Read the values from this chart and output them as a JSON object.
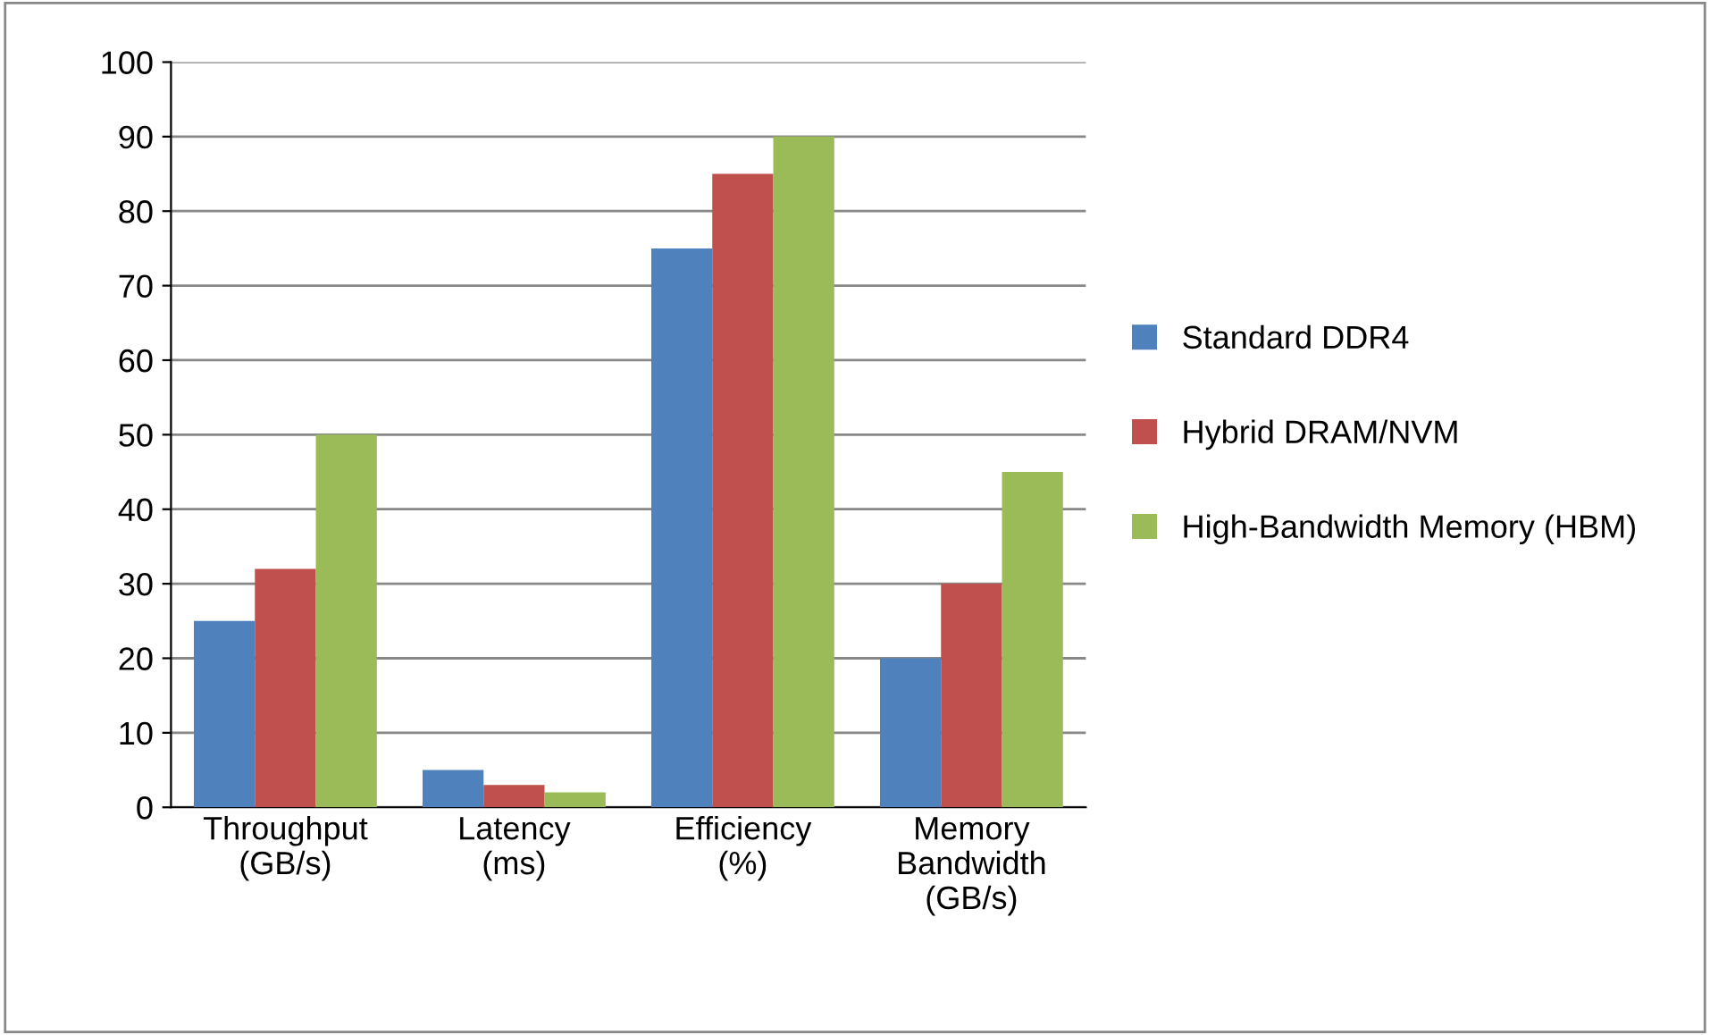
{
  "chart_data": {
    "type": "bar",
    "categories": [
      "Throughput\n(GB/s)",
      "Latency\n(ms)",
      "Efficiency\n(%)",
      "Memory\nBandwidth\n(GB/s)"
    ],
    "series": [
      {
        "name": "Standard DDR4",
        "color": "#4f81bd",
        "values": [
          25,
          5,
          75,
          20
        ]
      },
      {
        "name": "Hybrid DRAM/NVM",
        "color": "#c0504d",
        "values": [
          32,
          3,
          85,
          30
        ]
      },
      {
        "name": "High-Bandwidth Memory (HBM)",
        "color": "#9bbb59",
        "values": [
          50,
          2,
          90,
          45
        ]
      }
    ],
    "ylim": [
      0,
      100
    ],
    "yticks": [
      0,
      10,
      20,
      30,
      40,
      50,
      60,
      70,
      80,
      90,
      100
    ],
    "grid": "y",
    "legend": "right"
  }
}
